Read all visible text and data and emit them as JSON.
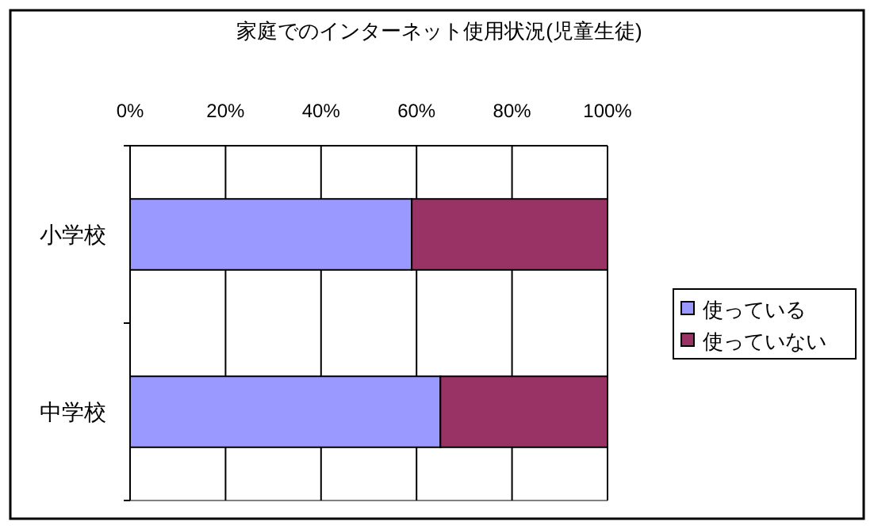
{
  "chart_data": {
    "type": "bar",
    "orientation": "horizontal",
    "stacked": true,
    "title": "家庭でのインターネット使用状況(児童生徒)",
    "categories": [
      "小学校",
      "中学校"
    ],
    "series": [
      {
        "name": "使っている",
        "color": "#9999ff",
        "values": [
          59,
          65
        ]
      },
      {
        "name": "使っていない",
        "color": "#993366",
        "values": [
          41,
          35
        ]
      }
    ],
    "xlim": [
      0,
      100
    ],
    "xticks": [
      {
        "value": 0,
        "label": "0%"
      },
      {
        "value": 20,
        "label": "20%"
      },
      {
        "value": 40,
        "label": "40%"
      },
      {
        "value": 60,
        "label": "60%"
      },
      {
        "value": 80,
        "label": "80%"
      },
      {
        "value": 100,
        "label": "100%"
      }
    ],
    "grid": "x",
    "legend": "right"
  }
}
